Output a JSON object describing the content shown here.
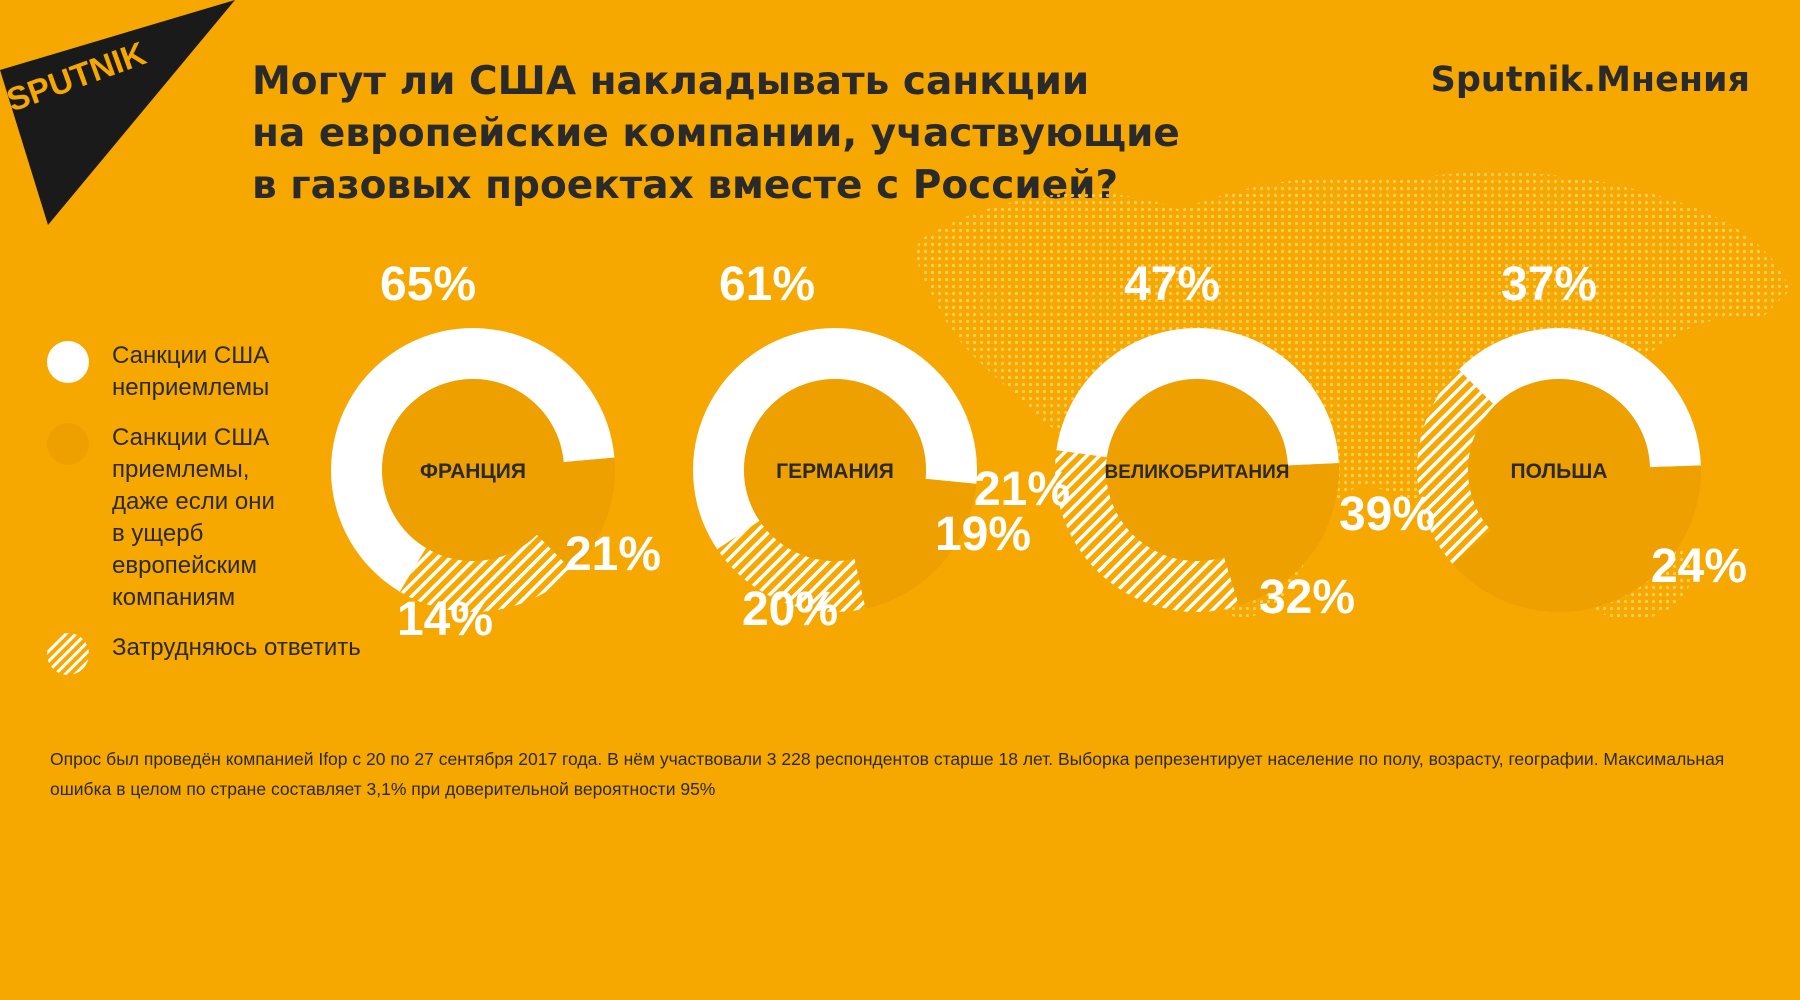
{
  "title": "Могут ли США накладывать санкции\nна европейские компании, участвующие\nв газовых проектах вместе с Россией?",
  "brand": "Sputnik.Мнения",
  "logo_text": "SPUTNIK",
  "colors": {
    "background": "#F7A800",
    "ring_inner": "#EEA000",
    "white": "#FFFFFF",
    "text": "#2a2a2a",
    "logo": "#1a1a1a"
  },
  "legend": [
    {
      "key": "unacceptable",
      "label": "Санкции США\nнеприемлемы",
      "swatch": "white"
    },
    {
      "key": "acceptable",
      "label": "Санкции США\nприемлемы,\nдаже если они\nв ущерб\nевропейским\nкомпаниям",
      "swatch": "orange"
    },
    {
      "key": "undecided",
      "label": "Затрудняюсь ответить",
      "swatch": "hatched"
    }
  ],
  "chart_data": [
    {
      "type": "pie",
      "category": "ФРАНЦИЯ",
      "values": [
        65,
        14,
        21
      ],
      "labels": [
        "65%",
        "14%",
        "21%"
      ]
    },
    {
      "type": "pie",
      "category": "ГЕРМАНИЯ",
      "values": [
        61,
        20,
        19
      ],
      "labels": [
        "61%",
        "20%",
        "19%"
      ]
    },
    {
      "type": "pie",
      "category": "ВЕЛИКОБРИТАНИЯ",
      "values": [
        47,
        21,
        32
      ],
      "labels": [
        "47%",
        "21%",
        "32%"
      ]
    },
    {
      "type": "pie",
      "category": "ПОЛЬША",
      "values": [
        37,
        39,
        24
      ],
      "labels": [
        "37%",
        "39%",
        "24%"
      ]
    }
  ],
  "footnote": "Опрос был проведён компанией Ifop с 20 по 27 сентября 2017 года. В нём участвовали 3 228 респондентов старше 18 лет. Выборка репрезентирует население по полу, возрасту, географии. Максимальная ошибка в целом по стране составляет 3,1% при доверительной вероятности 95%"
}
